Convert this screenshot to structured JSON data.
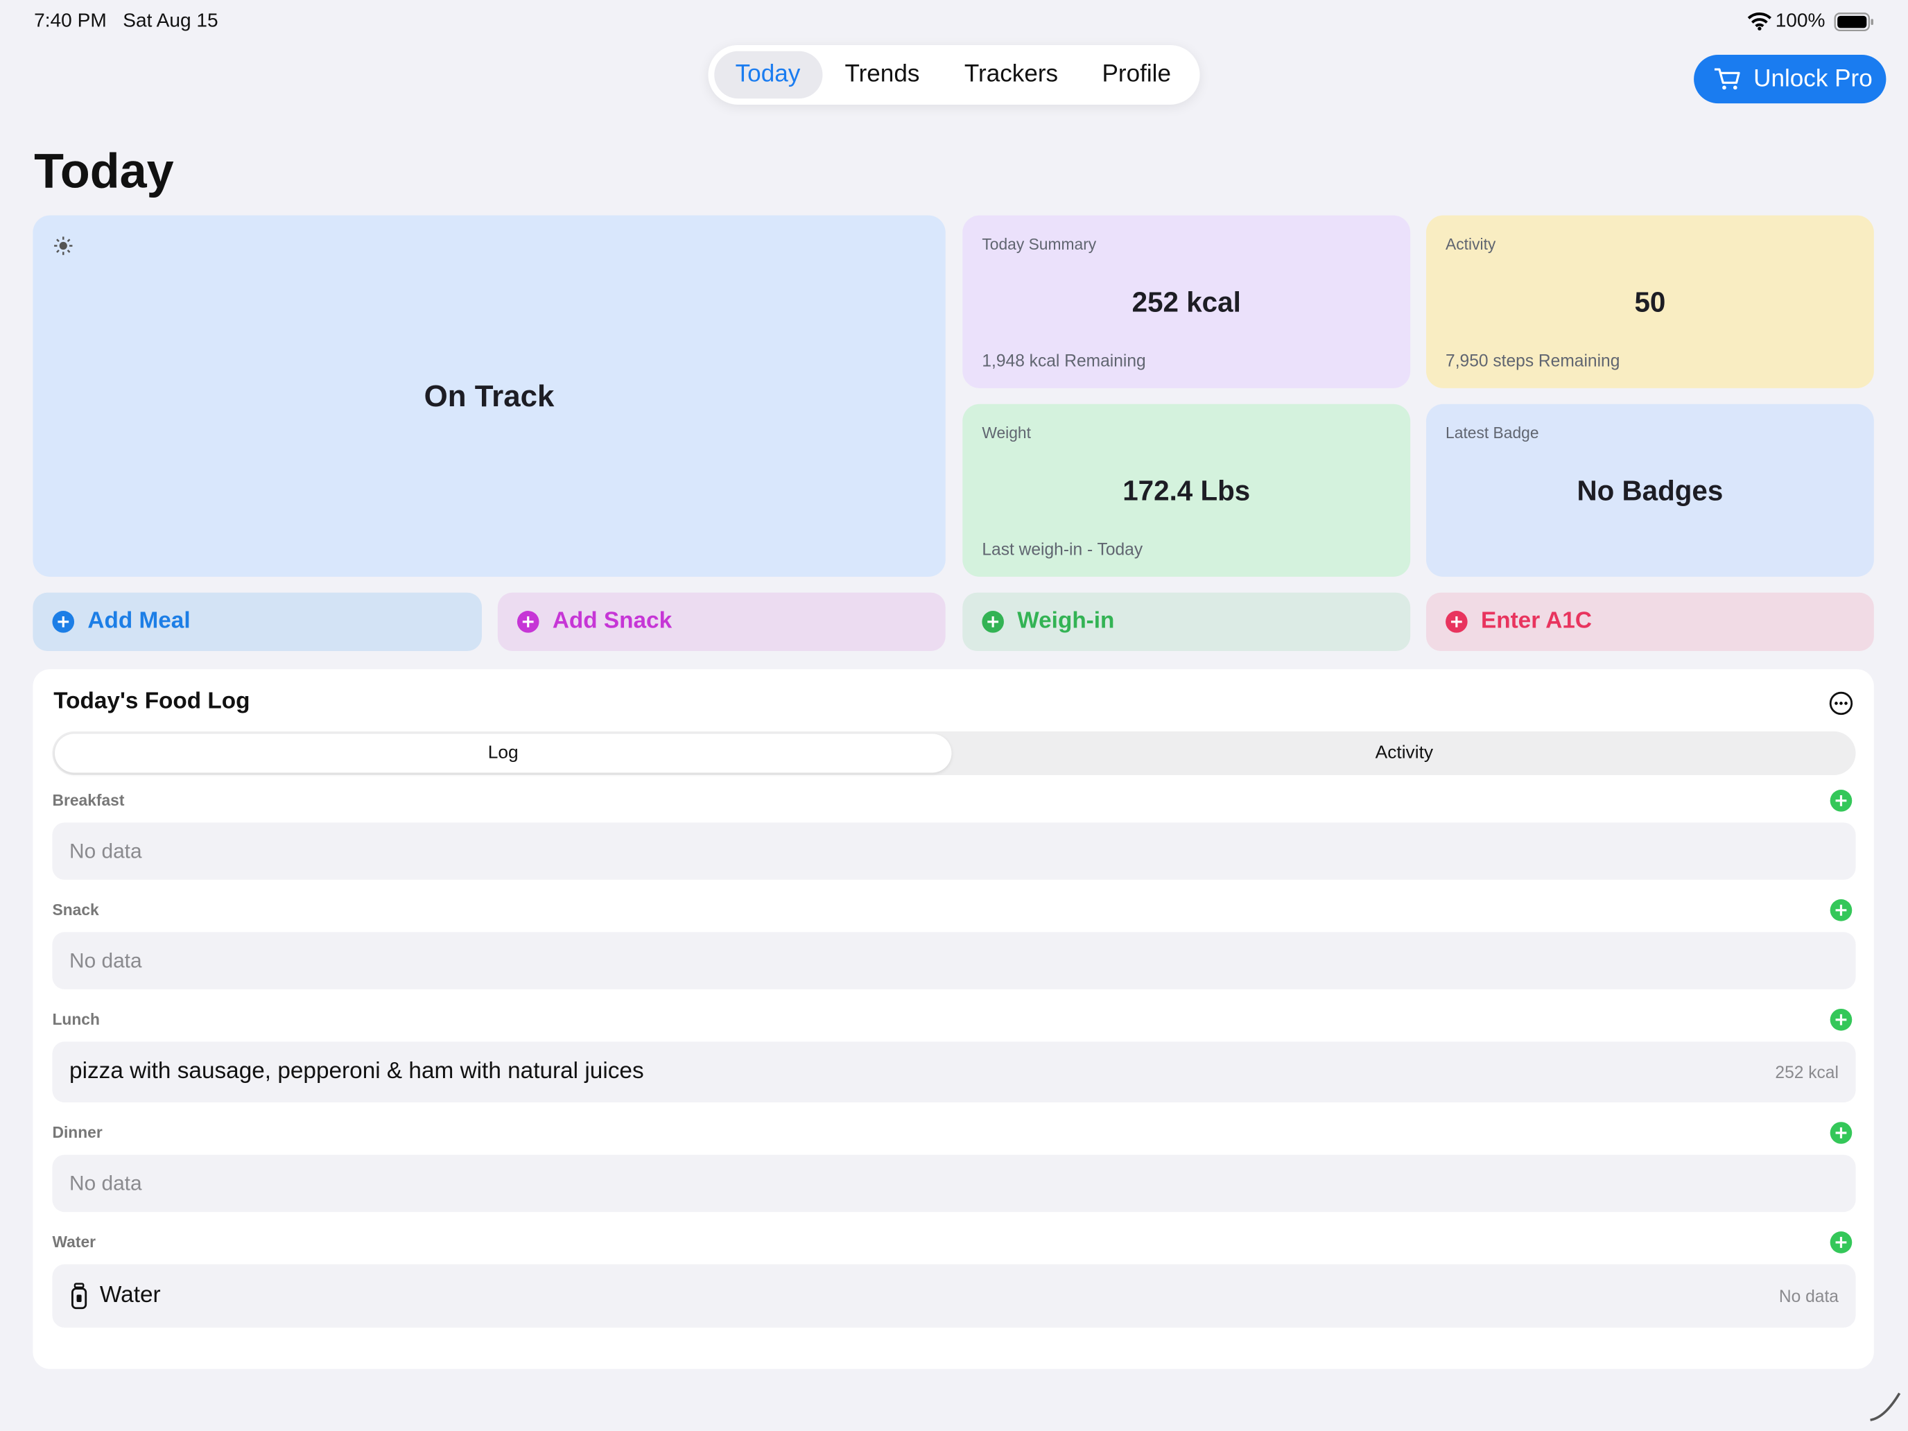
{
  "status_bar": {
    "time": "7:40 PM",
    "date": "Sat Aug 15",
    "battery": "100%"
  },
  "tabs": [
    "Today",
    "Trends",
    "Trackers",
    "Profile"
  ],
  "unlock_button": "Unlock Pro",
  "title": "Today",
  "hero": {
    "status": "On Track"
  },
  "cards": [
    {
      "label": "Today Summary",
      "value": "252 kcal",
      "sub": "1,948 kcal Remaining"
    },
    {
      "label": "Activity",
      "value": "50",
      "sub": "7,950 steps Remaining"
    },
    {
      "label": "Weight",
      "value": "172.4 Lbs",
      "sub": "Last weigh-in - Today"
    },
    {
      "label": "Latest Badge",
      "value": "No Badges"
    }
  ],
  "actions": [
    "Add Meal",
    "Add Snack",
    "Weigh-in",
    "Enter A1C"
  ],
  "food_log": {
    "title": "Today's Food Log",
    "segments": [
      "Log",
      "Activity"
    ],
    "sections": [
      {
        "name": "Breakfast",
        "placeholder": "No data"
      },
      {
        "name": "Snack",
        "placeholder": "No data"
      },
      {
        "name": "Lunch",
        "item": "pizza with sausage, pepperoni & ham with natural juices",
        "detail": "252 kcal"
      },
      {
        "name": "Dinner",
        "placeholder": "No data"
      },
      {
        "name": "Water",
        "item": "Water",
        "detail": "No data"
      }
    ]
  }
}
